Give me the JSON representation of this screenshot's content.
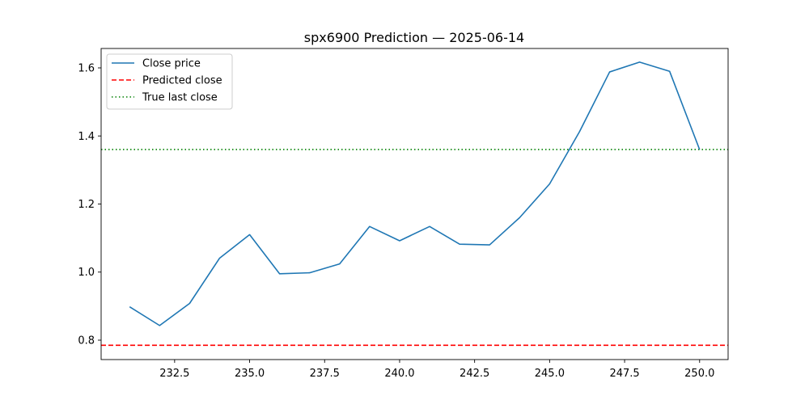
{
  "chart_data": {
    "type": "line",
    "title": "spx6900 Prediction — 2025-06-14",
    "xlabel": "",
    "ylabel": "",
    "xlim": [
      230.05,
      250.95
    ],
    "ylim": [
      0.743,
      1.657
    ],
    "x_ticks": [
      232.5,
      235.0,
      237.5,
      240.0,
      242.5,
      245.0,
      247.5,
      250.0
    ],
    "x_tick_labels": [
      "232.5",
      "235.0",
      "237.5",
      "240.0",
      "242.5",
      "245.0",
      "247.5",
      "250.0"
    ],
    "y_ticks": [
      0.8,
      1.0,
      1.2,
      1.4,
      1.6
    ],
    "y_tick_labels": [
      "0.8",
      "1.0",
      "1.2",
      "1.4",
      "1.6"
    ],
    "grid": false,
    "legend_position": "upper-left",
    "series": [
      {
        "name": "Close price",
        "color": "#1f77b4",
        "style": "solid",
        "x": [
          231,
          232,
          233,
          234,
          235,
          236,
          237,
          238,
          239,
          240,
          241,
          242,
          243,
          244,
          245,
          246,
          247,
          248,
          249,
          250
        ],
        "values": [
          0.898,
          0.843,
          0.908,
          1.041,
          1.11,
          0.995,
          0.998,
          1.024,
          1.134,
          1.092,
          1.134,
          1.082,
          1.08,
          1.16,
          1.259,
          1.413,
          1.588,
          1.617,
          1.59,
          1.36
        ]
      }
    ],
    "hlines": [
      {
        "name": "Predicted close",
        "y": 0.785,
        "color": "#ff0000",
        "style": "dashed"
      },
      {
        "name": "True last close",
        "y": 1.36,
        "color": "#008000",
        "style": "dotted"
      }
    ]
  }
}
